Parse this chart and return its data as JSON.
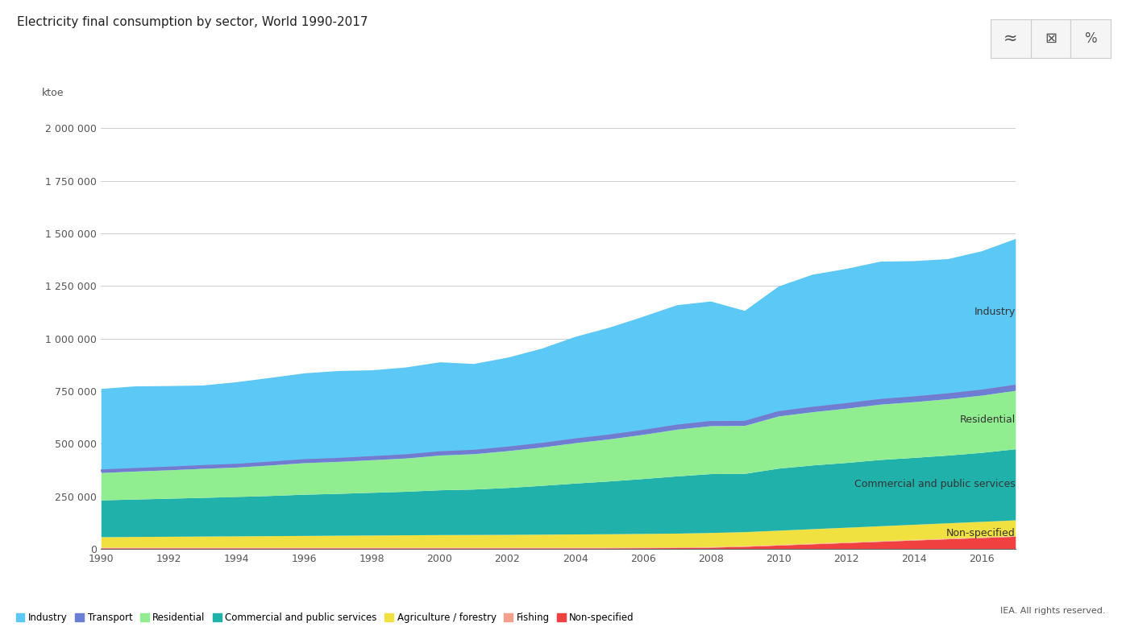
{
  "title": "Electricity final consumption by sector, World 1990-2017",
  "ylabel": "ktoe",
  "years": [
    1990,
    1991,
    1992,
    1993,
    1994,
    1995,
    1996,
    1997,
    1998,
    1999,
    2000,
    2001,
    2002,
    2003,
    2004,
    2005,
    2006,
    2007,
    2008,
    2009,
    2010,
    2011,
    2012,
    2013,
    2014,
    2015,
    2016,
    2017
  ],
  "industry": [
    390000,
    395000,
    390000,
    385000,
    395000,
    405000,
    415000,
    420000,
    415000,
    420000,
    430000,
    415000,
    430000,
    455000,
    490000,
    515000,
    545000,
    575000,
    575000,
    530000,
    600000,
    635000,
    645000,
    660000,
    650000,
    645000,
    665000,
    700000
  ],
  "transport": [
    10000,
    10000,
    10500,
    11000,
    11000,
    11500,
    12000,
    12000,
    12500,
    13000,
    13500,
    14000,
    14500,
    15000,
    15500,
    16000,
    16500,
    17000,
    17500,
    17000,
    18000,
    19000,
    19500,
    20000,
    20500,
    21000,
    21500,
    22000
  ],
  "residential": [
    130000,
    133000,
    135000,
    138000,
    140000,
    145000,
    150000,
    152000,
    155000,
    158000,
    165000,
    168000,
    175000,
    182000,
    192000,
    200000,
    210000,
    222000,
    228000,
    228000,
    248000,
    253000,
    258000,
    263000,
    265000,
    268000,
    272000,
    278000
  ],
  "commercial": [
    175000,
    178000,
    181000,
    184000,
    187000,
    191000,
    196000,
    199000,
    203000,
    207000,
    213000,
    216000,
    223000,
    232000,
    242000,
    251000,
    261000,
    272000,
    280000,
    277000,
    295000,
    303000,
    308000,
    315000,
    318000,
    322000,
    328000,
    338000
  ],
  "agriculture": [
    50000,
    51000,
    52000,
    53000,
    54000,
    55000,
    56000,
    57000,
    58000,
    59000,
    60000,
    60500,
    61000,
    62000,
    63000,
    64000,
    65000,
    66000,
    67000,
    67000,
    68000,
    69000,
    70000,
    71000,
    72000,
    73000,
    74000,
    75000
  ],
  "fishing": [
    3000,
    3000,
    3000,
    3000,
    3000,
    3000,
    3000,
    3000,
    3000,
    3000,
    3000,
    3000,
    3000,
    3000,
    3000,
    3000,
    3000,
    3000,
    3000,
    3000,
    3000,
    3000,
    3000,
    3000,
    3000,
    3000,
    3000,
    3000
  ],
  "non_specified": [
    5000,
    5000,
    5000,
    5000,
    5000,
    5000,
    5000,
    5000,
    5000,
    5000,
    5000,
    5000,
    5000,
    5000,
    5000,
    5000,
    5500,
    6000,
    8000,
    12000,
    18000,
    24000,
    30000,
    36000,
    42000,
    48000,
    54000,
    60000
  ],
  "colors": {
    "industry": "#5BC8F5",
    "transport": "#6B7FD4",
    "residential": "#90EE90",
    "commercial": "#20B2AA",
    "agriculture": "#F0E040",
    "fishing": "#F5A08C",
    "non_specified": "#F04040"
  },
  "ylim": [
    0,
    2100000
  ],
  "yticks": [
    0,
    250000,
    500000,
    750000,
    1000000,
    1250000,
    1500000,
    1750000,
    2000000
  ],
  "ytick_labels": [
    "0",
    "250 000",
    "500 000",
    "750 000",
    "1 000 000",
    "1 250 000",
    "1 500 000",
    "1 750 000",
    "2 000 000"
  ],
  "xticks": [
    1990,
    1992,
    1994,
    1996,
    1998,
    2000,
    2002,
    2004,
    2006,
    2008,
    2010,
    2012,
    2014,
    2016
  ],
  "background_color": "#ffffff",
  "grid_color": "#d0d0d0",
  "plot_border_color": "#cccccc"
}
